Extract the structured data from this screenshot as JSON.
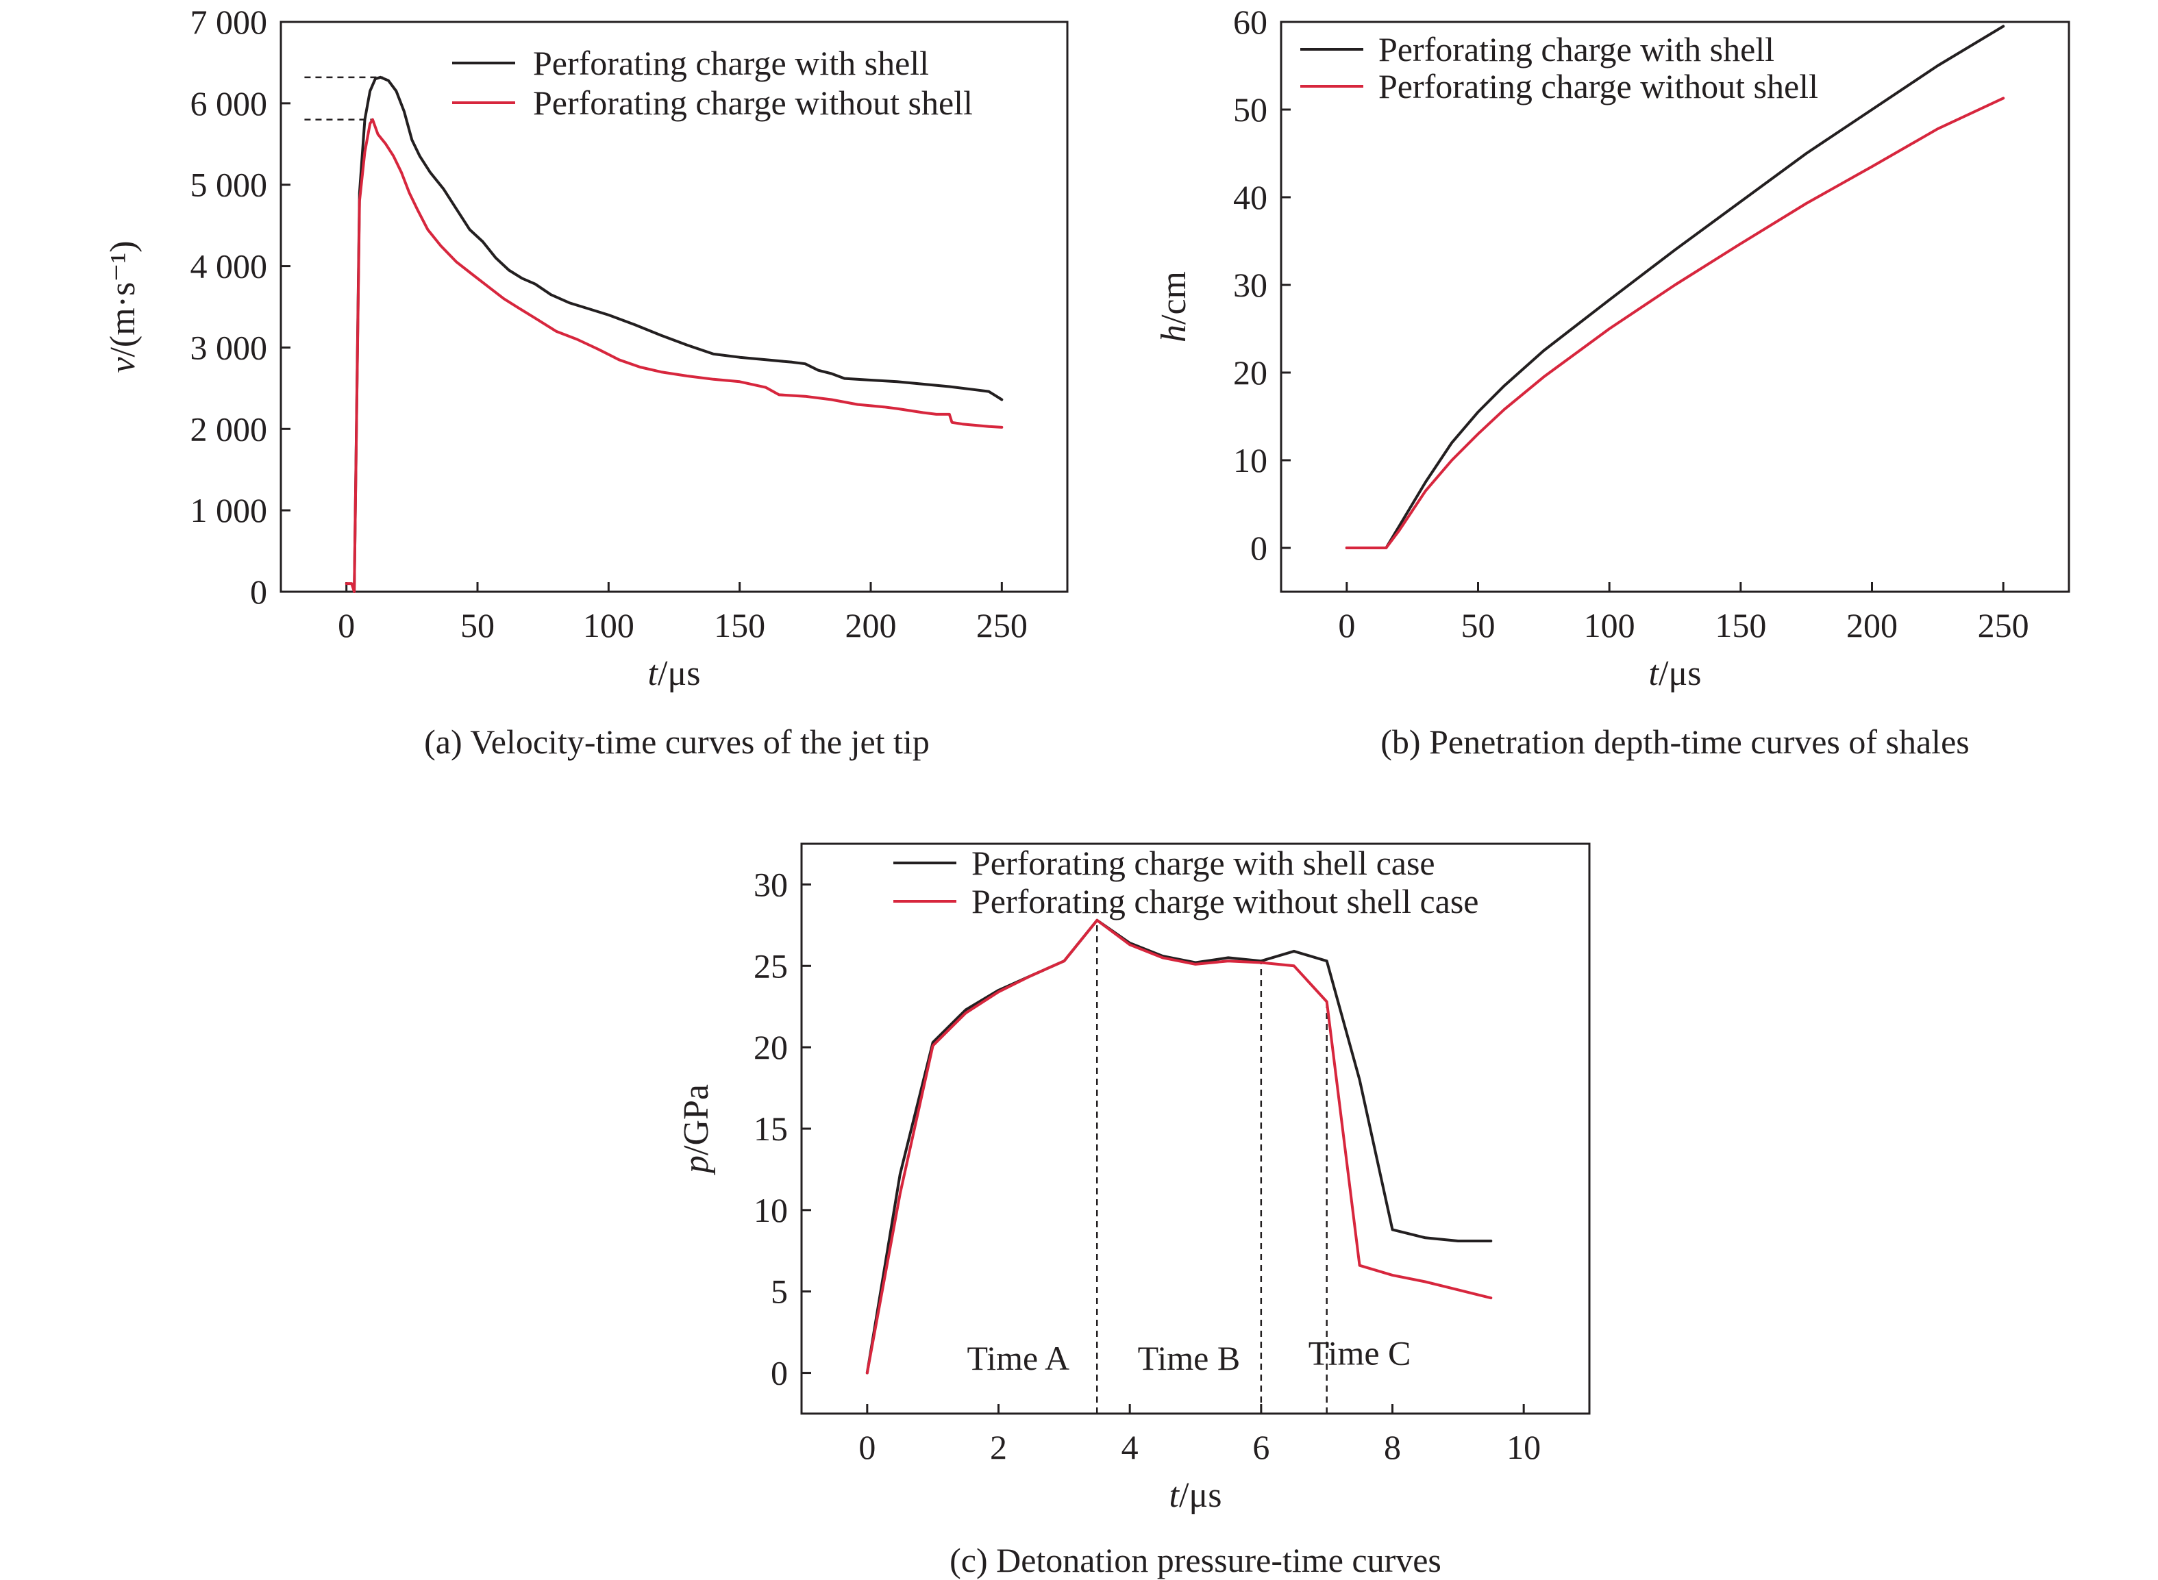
{
  "colors": {
    "with_shell": "#231f20",
    "without_shell": "#d7263d",
    "axis": "#231f20"
  },
  "chart_data": [
    {
      "type": "line",
      "caption": "(a) Velocity-time curves of the jet tip",
      "xlabel_var": "t",
      "xlabel_unit": "/μs",
      "ylabel_var": "v",
      "ylabel_unit": "/(m·s⁻¹)",
      "xlim": [
        -25,
        275
      ],
      "ylim": [
        0,
        7000
      ],
      "xticks": [
        0,
        50,
        100,
        150,
        200,
        250
      ],
      "yticks": [
        0,
        1000,
        2000,
        3000,
        4000,
        5000,
        6000,
        7000
      ],
      "ytick_labels": [
        "0",
        "1 000",
        "2 000",
        "3 000",
        "4 000",
        "5 000",
        "6 000",
        "7 000"
      ],
      "legend_position": "top-right",
      "series": [
        {
          "name": "Perforating charge with shell",
          "color_key": "with_shell",
          "x": [
            3,
            5,
            7,
            9,
            11,
            13,
            16,
            19,
            22,
            25,
            28,
            32,
            37,
            42,
            47,
            52,
            57,
            62,
            67,
            72,
            78,
            85,
            92,
            100,
            110,
            120,
            130,
            140,
            150,
            160,
            170,
            175,
            180,
            185,
            190,
            200,
            210,
            220,
            230,
            240,
            245,
            248,
            250
          ],
          "y": [
            0,
            4900,
            5800,
            6150,
            6300,
            6320,
            6280,
            6150,
            5900,
            5550,
            5350,
            5150,
            4950,
            4700,
            4450,
            4300,
            4100,
            3950,
            3850,
            3780,
            3650,
            3550,
            3480,
            3400,
            3280,
            3150,
            3030,
            2920,
            2880,
            2850,
            2820,
            2800,
            2720,
            2680,
            2620,
            2600,
            2580,
            2550,
            2520,
            2480,
            2460,
            2400,
            2360
          ]
        },
        {
          "name": "Perforating charge without shell",
          "color_key": "without_shell",
          "x": [
            0,
            2,
            3,
            5,
            7,
            9,
            10,
            12,
            15,
            18,
            21,
            24,
            27,
            31,
            36,
            42,
            48,
            54,
            60,
            66,
            72,
            80,
            88,
            96,
            104,
            112,
            120,
            130,
            140,
            150,
            160,
            165,
            175,
            185,
            195,
            205,
            210,
            220,
            225,
            230,
            231,
            235,
            245,
            250
          ],
          "y": [
            100,
            100,
            0,
            4800,
            5400,
            5750,
            5800,
            5620,
            5500,
            5350,
            5150,
            4900,
            4700,
            4450,
            4250,
            4050,
            3900,
            3750,
            3600,
            3480,
            3360,
            3200,
            3100,
            2980,
            2850,
            2760,
            2700,
            2650,
            2610,
            2580,
            2510,
            2420,
            2400,
            2360,
            2300,
            2270,
            2250,
            2200,
            2180,
            2180,
            2080,
            2060,
            2030,
            2020
          ]
        }
      ],
      "reference_lines": [
        {
          "label": "peak-with-shell",
          "x0": -16,
          "x1": 14,
          "y": 6320
        },
        {
          "label": "peak-without-shell",
          "x0": -16,
          "x1": 10,
          "y": 5800
        }
      ]
    },
    {
      "type": "line",
      "caption": "(b) Penetration depth-time curves of shales",
      "xlabel_var": "t",
      "xlabel_unit": "/μs",
      "ylabel_var": "h",
      "ylabel_unit": "/cm",
      "xlim": [
        -25,
        275
      ],
      "ylim": [
        -5,
        60
      ],
      "xticks": [
        0,
        50,
        100,
        150,
        200,
        250
      ],
      "yticks": [
        0,
        10,
        20,
        30,
        40,
        50,
        60
      ],
      "ytick_labels": [
        "0",
        "10",
        "20",
        "30",
        "40",
        "50",
        "60"
      ],
      "legend_position": "top-left",
      "series": [
        {
          "name": "Perforating charge with shell",
          "color_key": "with_shell",
          "x": [
            0,
            15,
            20,
            30,
            40,
            50,
            60,
            75,
            100,
            125,
            150,
            175,
            200,
            225,
            250
          ],
          "y": [
            0,
            0,
            2.5,
            7.5,
            12,
            15.5,
            18.5,
            22.5,
            28.3,
            34,
            39.5,
            45,
            50,
            55,
            59.5
          ]
        },
        {
          "name": "Perforating charge without shell",
          "color_key": "without_shell",
          "x": [
            0,
            15,
            20,
            30,
            40,
            50,
            60,
            75,
            100,
            125,
            150,
            175,
            200,
            225,
            250
          ],
          "y": [
            0,
            0,
            2.0,
            6.5,
            10.0,
            13.0,
            15.8,
            19.5,
            25.0,
            30.0,
            34.7,
            39.3,
            43.5,
            47.8,
            51.3
          ]
        }
      ]
    },
    {
      "type": "line",
      "caption": "(c) Detonation pressure-time curves",
      "xlabel_var": "t",
      "xlabel_unit": "/μs",
      "ylabel_var": "p",
      "ylabel_unit": "/GPa",
      "xlim": [
        -1,
        11
      ],
      "ylim": [
        -2.5,
        32.5
      ],
      "xticks": [
        0,
        2,
        4,
        6,
        8,
        10
      ],
      "yticks": [
        0,
        5,
        10,
        15,
        20,
        25,
        30
      ],
      "ytick_labels": [
        "0",
        "5",
        "10",
        "15",
        "20",
        "25",
        "30"
      ],
      "legend_position": "top",
      "series": [
        {
          "name": "Perforating charge with shell case",
          "color_key": "with_shell",
          "x": [
            0,
            0.5,
            1.0,
            1.5,
            2.0,
            2.5,
            3.0,
            3.5,
            4.0,
            4.5,
            5.0,
            5.5,
            6.0,
            6.5,
            7.0,
            7.5,
            8.0,
            8.5,
            9.0,
            9.5
          ],
          "y": [
            0,
            12.2,
            20.3,
            22.3,
            23.5,
            24.4,
            25.3,
            27.8,
            26.4,
            25.6,
            25.2,
            25.5,
            25.3,
            25.9,
            25.3,
            18.0,
            8.8,
            8.3,
            8.1,
            8.1
          ]
        },
        {
          "name": "Perforating charge without shell case",
          "color_key": "without_shell",
          "x": [
            0,
            0.5,
            1.0,
            1.5,
            2.0,
            2.5,
            3.0,
            3.5,
            4.0,
            4.5,
            5.0,
            5.5,
            6.0,
            6.5,
            7.0,
            7.5,
            8.0,
            8.5,
            9.0,
            9.5
          ],
          "y": [
            0,
            11.0,
            20.1,
            22.1,
            23.4,
            24.4,
            25.3,
            27.8,
            26.3,
            25.5,
            25.1,
            25.3,
            25.2,
            25.0,
            22.8,
            6.6,
            6.0,
            5.6,
            5.1,
            4.6
          ]
        }
      ],
      "vertical_lines": [
        3.5,
        6.0,
        7.0
      ],
      "annotations": [
        {
          "text": "Time A",
          "x": 2.3,
          "y": 0.2
        },
        {
          "text": "Time B",
          "x": 4.9,
          "y": 0.2
        },
        {
          "text": "Time C",
          "x": 7.5,
          "y": 0.5
        }
      ]
    }
  ]
}
